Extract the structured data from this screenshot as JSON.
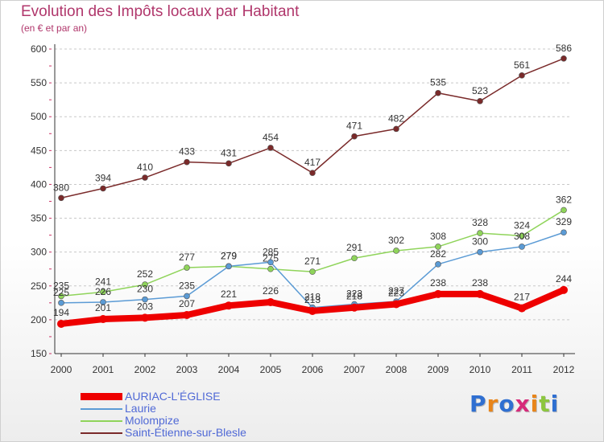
{
  "chart_data": {
    "type": "line",
    "title": "Evolution des Impôts locaux par Habitant",
    "subtitle": "(en € et par an)",
    "xlabel": "",
    "ylabel": "",
    "ylim": [
      150,
      600
    ],
    "yticks": [
      150,
      200,
      250,
      300,
      350,
      400,
      450,
      500,
      550,
      600
    ],
    "grid": "horizontal dashed",
    "categories": [
      "2000",
      "2001",
      "2002",
      "2003",
      "2004",
      "2005",
      "2006",
      "2007",
      "2008",
      "2009",
      "2010",
      "2011",
      "2012"
    ],
    "series": [
      {
        "name": "AURIAC-L'ÉGLISE",
        "color": "#ee0000",
        "values": [
          194,
          201,
          203,
          207,
          221,
          226,
          213,
          218,
          223,
          238,
          238,
          217,
          244
        ]
      },
      {
        "name": "Laurie",
        "color": "#5b9bd5",
        "values": [
          225,
          226,
          230,
          235,
          279,
          285,
          218,
          223,
          227,
          282,
          300,
          308,
          329
        ]
      },
      {
        "name": "Molompize",
        "color": "#8fd45a",
        "values": [
          235,
          241,
          252,
          277,
          279,
          275,
          271,
          291,
          302,
          308,
          328,
          324,
          362
        ]
      },
      {
        "name": "Saint-Étienne-sur-Blesle",
        "color": "#7a2a2a",
        "values": [
          380,
          394,
          410,
          433,
          431,
          454,
          417,
          471,
          482,
          535,
          523,
          561,
          586
        ]
      }
    ],
    "legend_position": "bottom-left"
  },
  "brand": {
    "letters": [
      "P",
      "r",
      "o",
      "x",
      "i",
      "t",
      "i"
    ],
    "colors": [
      "#2f6fd1",
      "#e8851a",
      "#2f6fd1",
      "#d62a7a",
      "#e8851a",
      "#8cc63f",
      "#2f6fd1"
    ]
  }
}
